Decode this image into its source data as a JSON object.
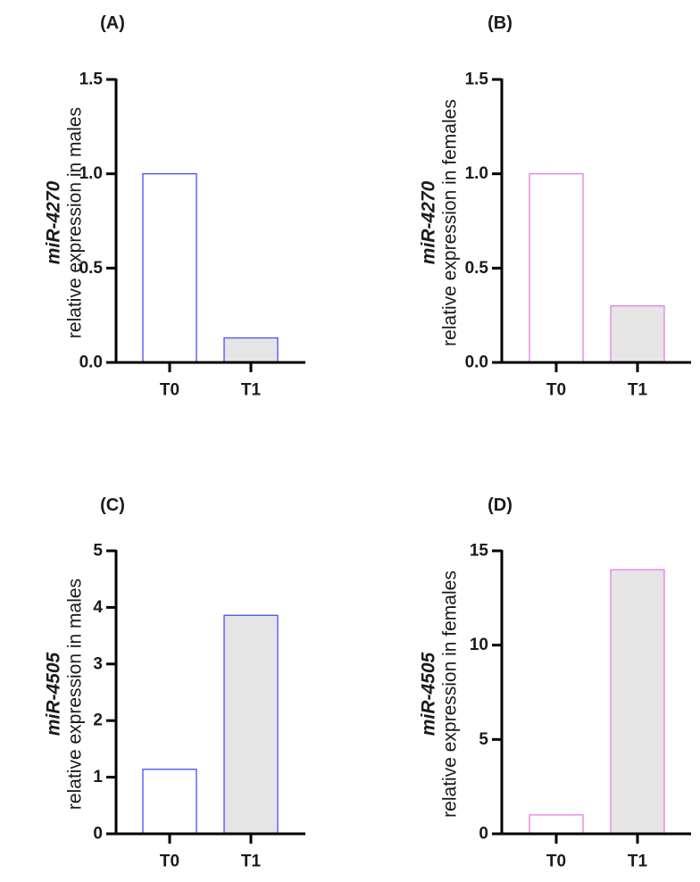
{
  "chart_data": [
    {
      "panel": "(A)",
      "type": "bar",
      "categories": [
        "T0",
        "T1"
      ],
      "values": [
        1.0,
        0.13
      ],
      "ylabel_gene": "miR-4270",
      "ylabel_desc": "relative expression in males",
      "ylim": [
        0,
        1.5
      ],
      "yticks": [
        "0.0",
        "0.5",
        "1.0",
        "1.5"
      ],
      "ytick_values": [
        0,
        0.5,
        1.0,
        1.5
      ],
      "bar_fills": [
        "#ffffff",
        "#e5e5e5"
      ],
      "bar_stroke": "#4b4bff",
      "grid": false
    },
    {
      "panel": "(B)",
      "type": "bar",
      "categories": [
        "T0",
        "T1"
      ],
      "values": [
        1.0,
        0.3
      ],
      "ylabel_gene": "miR-4270",
      "ylabel_desc": "relative expression in females",
      "ylim": [
        0,
        1.5
      ],
      "yticks": [
        "0.0",
        "0.5",
        "1.0",
        "1.5"
      ],
      "ytick_values": [
        0,
        0.5,
        1.0,
        1.5
      ],
      "bar_fills": [
        "#ffffff",
        "#e5e5e5"
      ],
      "bar_stroke": "#e47de8",
      "grid": false
    },
    {
      "panel": "(C)",
      "type": "bar",
      "categories": [
        "T0",
        "T1"
      ],
      "values": [
        1.14,
        3.86
      ],
      "ylabel_gene": "miR-4505",
      "ylabel_desc": "relative expression in males",
      "ylim": [
        0,
        5
      ],
      "yticks": [
        "0",
        "1",
        "2",
        "3",
        "4",
        "5"
      ],
      "ytick_values": [
        0,
        1,
        2,
        3,
        4,
        5
      ],
      "bar_fills": [
        "#ffffff",
        "#e5e5e5"
      ],
      "bar_stroke": "#4b4bff",
      "grid": false
    },
    {
      "panel": "(D)",
      "type": "bar",
      "categories": [
        "T0",
        "T1"
      ],
      "values": [
        1.0,
        14.0
      ],
      "ylabel_gene": "miR-4505",
      "ylabel_desc": "relative expression in females",
      "ylim": [
        0,
        15
      ],
      "yticks": [
        "0",
        "5",
        "10",
        "15"
      ],
      "ytick_values": [
        0,
        5,
        10,
        15
      ],
      "bar_fills": [
        "#ffffff",
        "#e5e5e5"
      ],
      "bar_stroke": "#e47de8",
      "grid": false
    }
  ]
}
